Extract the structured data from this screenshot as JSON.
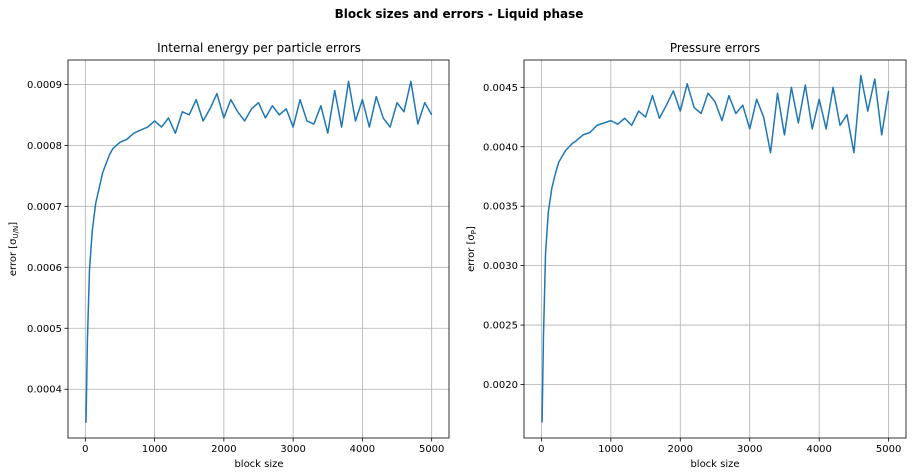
{
  "figure": {
    "title": "Block sizes and errors - Liquid phase"
  },
  "chart_data": [
    {
      "type": "line",
      "title": "Internal energy per particle errors",
      "xlabel": "block size",
      "ylabel": "error [σ",
      "ylabel_sub": "U/N",
      "ylabel_end": "]",
      "xlim": [
        -250,
        5250
      ],
      "ylim": [
        0.00032,
        0.00094
      ],
      "xticks": [
        0,
        1000,
        2000,
        3000,
        4000,
        5000
      ],
      "xtick_labels": [
        "0",
        "1000",
        "2000",
        "3000",
        "4000",
        "5000"
      ],
      "yticks": [
        0.0004,
        0.0005,
        0.0006,
        0.0007,
        0.0008,
        0.0009
      ],
      "ytick_labels": [
        "0.0004",
        "0.0005",
        "0.0006",
        "0.0007",
        "0.0008",
        "0.0009"
      ],
      "grid": true,
      "color": "#1f77b4",
      "series": [
        {
          "x": [
            10,
            30,
            60,
            100,
            150,
            200,
            250,
            300,
            350,
            400,
            450,
            500,
            600,
            700,
            800,
            900,
            1000,
            1100,
            1200,
            1300,
            1400,
            1500,
            1600,
            1700,
            1800,
            1900,
            2000,
            2100,
            2200,
            2300,
            2400,
            2500,
            2600,
            2700,
            2800,
            2900,
            3000,
            3100,
            3200,
            3300,
            3400,
            3500,
            3600,
            3700,
            3800,
            3900,
            4000,
            4100,
            4200,
            4300,
            4400,
            4500,
            4600,
            4700,
            4800,
            4900,
            5000
          ],
          "y": [
            0.000345,
            0.00048,
            0.000595,
            0.00066,
            0.000705,
            0.00073,
            0.000755,
            0.00077,
            0.000785,
            0.000795,
            0.0008,
            0.000805,
            0.00081,
            0.00082,
            0.000825,
            0.00083,
            0.00084,
            0.00083,
            0.000845,
            0.00082,
            0.000855,
            0.00085,
            0.000875,
            0.00084,
            0.00086,
            0.000885,
            0.000845,
            0.000875,
            0.000855,
            0.00084,
            0.00086,
            0.00087,
            0.000845,
            0.000865,
            0.00085,
            0.00086,
            0.00083,
            0.000875,
            0.00084,
            0.000835,
            0.000865,
            0.00082,
            0.00089,
            0.00083,
            0.000905,
            0.00084,
            0.000875,
            0.00083,
            0.00088,
            0.000845,
            0.00083,
            0.00087,
            0.000855,
            0.000905,
            0.000835,
            0.00087,
            0.00085
          ]
        }
      ]
    },
    {
      "type": "line",
      "title": "Pressure errors",
      "xlabel": "block size",
      "ylabel": "error [σ",
      "ylabel_sub": "P",
      "ylabel_end": "]",
      "xlim": [
        -250,
        5250
      ],
      "ylim": [
        0.00155,
        0.00473
      ],
      "xticks": [
        0,
        1000,
        2000,
        3000,
        4000,
        5000
      ],
      "xtick_labels": [
        "0",
        "1000",
        "2000",
        "3000",
        "4000",
        "5000"
      ],
      "yticks": [
        0.002,
        0.0025,
        0.003,
        0.0035,
        0.004,
        0.0045
      ],
      "ytick_labels": [
        "0.0020",
        "0.0025",
        "0.0030",
        "0.0035",
        "0.0040",
        "0.0045"
      ],
      "grid": true,
      "color": "#1f77b4",
      "series": [
        {
          "x": [
            10,
            30,
            60,
            100,
            150,
            200,
            250,
            300,
            350,
            400,
            450,
            500,
            600,
            700,
            800,
            900,
            1000,
            1100,
            1200,
            1300,
            1400,
            1500,
            1600,
            1700,
            1800,
            1900,
            2000,
            2100,
            2200,
            2300,
            2400,
            2500,
            2600,
            2700,
            2800,
            2900,
            3000,
            3100,
            3200,
            3300,
            3400,
            3500,
            3600,
            3700,
            3800,
            3900,
            4000,
            4100,
            4200,
            4300,
            4400,
            4500,
            4600,
            4700,
            4800,
            4900,
            5000
          ],
          "y": [
            0.00168,
            0.0024,
            0.0031,
            0.00345,
            0.00365,
            0.00377,
            0.00387,
            0.00392,
            0.00397,
            0.004,
            0.00403,
            0.00405,
            0.0041,
            0.00412,
            0.00418,
            0.0042,
            0.00422,
            0.00419,
            0.00424,
            0.00418,
            0.0043,
            0.00425,
            0.00443,
            0.00424,
            0.00435,
            0.00447,
            0.0043,
            0.00453,
            0.00433,
            0.00428,
            0.00445,
            0.00438,
            0.00422,
            0.00443,
            0.00428,
            0.00435,
            0.00415,
            0.0044,
            0.00425,
            0.00395,
            0.00445,
            0.0041,
            0.0045,
            0.0042,
            0.00452,
            0.00415,
            0.0044,
            0.00415,
            0.0045,
            0.00418,
            0.00427,
            0.00395,
            0.0046,
            0.0043,
            0.00457,
            0.0041,
            0.00447
          ]
        }
      ]
    }
  ]
}
